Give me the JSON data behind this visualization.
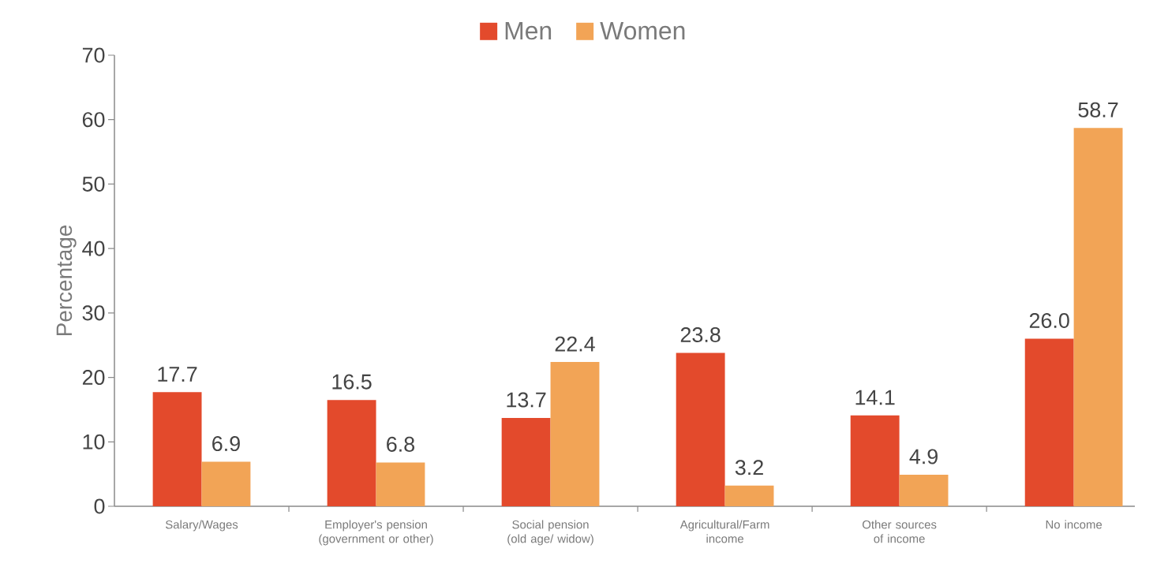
{
  "chart_data": {
    "type": "bar",
    "categories": [
      "Salary/Wages",
      "Employer's pension (government or other)",
      "Social pension (old age/ widow)",
      "Agricultural/Farm income",
      "Other sources of income",
      "No income"
    ],
    "series": [
      {
        "name": "Men",
        "color": "#e34a2c",
        "values": [
          17.7,
          16.5,
          13.7,
          23.8,
          14.1,
          26.0
        ],
        "value_labels": [
          "17.7",
          "16.5",
          "13.7",
          "23.8",
          "14.1",
          "26.0"
        ]
      },
      {
        "name": "Women",
        "color": "#f2a456",
        "values": [
          6.9,
          6.8,
          22.4,
          3.2,
          4.9,
          58.7
        ],
        "value_labels": [
          "6.9",
          "6.8",
          "22.4",
          "3.2",
          "4.9",
          "58.7"
        ]
      }
    ],
    "ylabel": "Percentage",
    "ylim": [
      0,
      70
    ],
    "yticks": [
      0,
      10,
      20,
      30,
      40,
      50,
      60,
      70
    ],
    "legend": "top"
  }
}
